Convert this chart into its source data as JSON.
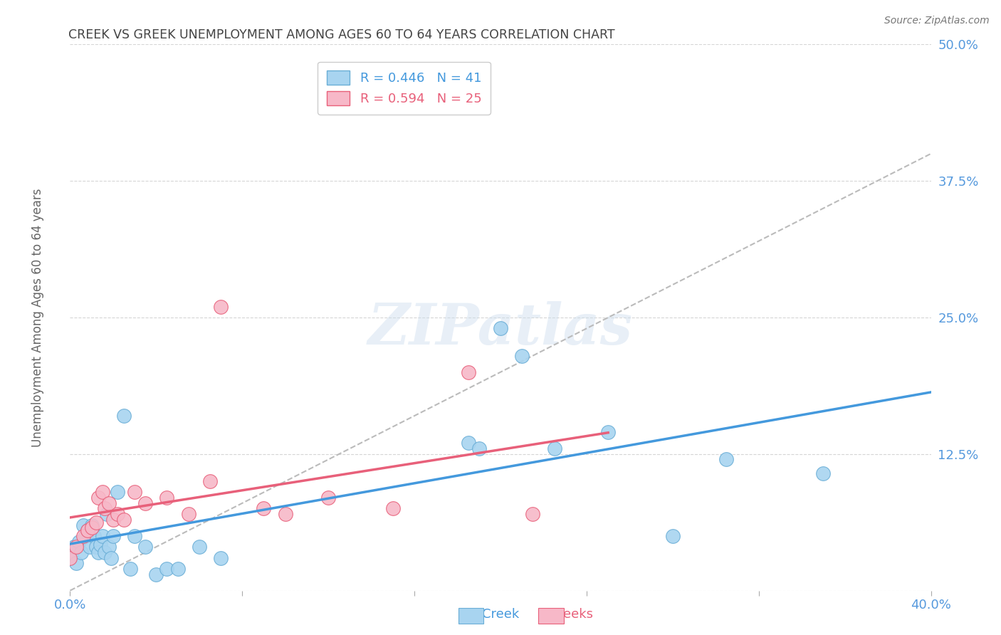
{
  "title": "CREEK VS GREEK UNEMPLOYMENT AMONG AGES 60 TO 64 YEARS CORRELATION CHART",
  "source": "Source: ZipAtlas.com",
  "ylabel_label": "Unemployment Among Ages 60 to 64 years",
  "xlim": [
    0.0,
    0.4
  ],
  "ylim": [
    0.0,
    0.5
  ],
  "yticks": [
    0.0,
    0.125,
    0.25,
    0.375,
    0.5
  ],
  "ytick_labels": [
    "",
    "12.5%",
    "25.0%",
    "37.5%",
    "50.0%"
  ],
  "xtick_labels_show": [
    "0.0%",
    "40.0%"
  ],
  "creek_color": "#a8d4f0",
  "creek_edge_color": "#6aaed6",
  "greeks_color": "#f7b8c8",
  "greeks_edge_color": "#e8607a",
  "trendline_creek_color": "#4499dd",
  "trendline_greeks_color": "#e8607a",
  "diagonal_color": "#bbbbbb",
  "background_color": "#ffffff",
  "grid_color": "#cccccc",
  "title_color": "#444444",
  "tick_label_color": "#5599dd",
  "watermark_text": "ZIPatlas",
  "legend_creek_label": "R = 0.446   N = 41",
  "legend_greeks_label": "R = 0.594   N = 25",
  "creek_x": [
    0.0,
    0.001,
    0.002,
    0.003,
    0.004,
    0.005,
    0.006,
    0.007,
    0.008,
    0.009,
    0.01,
    0.01,
    0.011,
    0.012,
    0.013,
    0.014,
    0.015,
    0.016,
    0.017,
    0.018,
    0.019,
    0.02,
    0.022,
    0.025,
    0.028,
    0.03,
    0.035,
    0.04,
    0.045,
    0.05,
    0.06,
    0.07,
    0.185,
    0.19,
    0.2,
    0.21,
    0.225,
    0.25,
    0.28,
    0.305,
    0.35
  ],
  "creek_y": [
    0.03,
    0.035,
    0.04,
    0.025,
    0.045,
    0.035,
    0.06,
    0.05,
    0.055,
    0.04,
    0.06,
    0.055,
    0.05,
    0.04,
    0.035,
    0.042,
    0.05,
    0.035,
    0.07,
    0.04,
    0.03,
    0.05,
    0.09,
    0.16,
    0.02,
    0.05,
    0.04,
    0.015,
    0.02,
    0.02,
    0.04,
    0.03,
    0.135,
    0.13,
    0.24,
    0.215,
    0.13,
    0.145,
    0.05,
    0.12,
    0.107
  ],
  "greeks_x": [
    0.0,
    0.003,
    0.006,
    0.008,
    0.01,
    0.012,
    0.013,
    0.015,
    0.016,
    0.018,
    0.02,
    0.022,
    0.025,
    0.03,
    0.035,
    0.045,
    0.055,
    0.065,
    0.07,
    0.09,
    0.1,
    0.12,
    0.15,
    0.185,
    0.215
  ],
  "greeks_y": [
    0.03,
    0.04,
    0.05,
    0.055,
    0.058,
    0.062,
    0.085,
    0.09,
    0.075,
    0.08,
    0.065,
    0.07,
    0.065,
    0.09,
    0.08,
    0.085,
    0.07,
    0.1,
    0.26,
    0.075,
    0.07,
    0.085,
    0.075,
    0.2,
    0.07
  ]
}
